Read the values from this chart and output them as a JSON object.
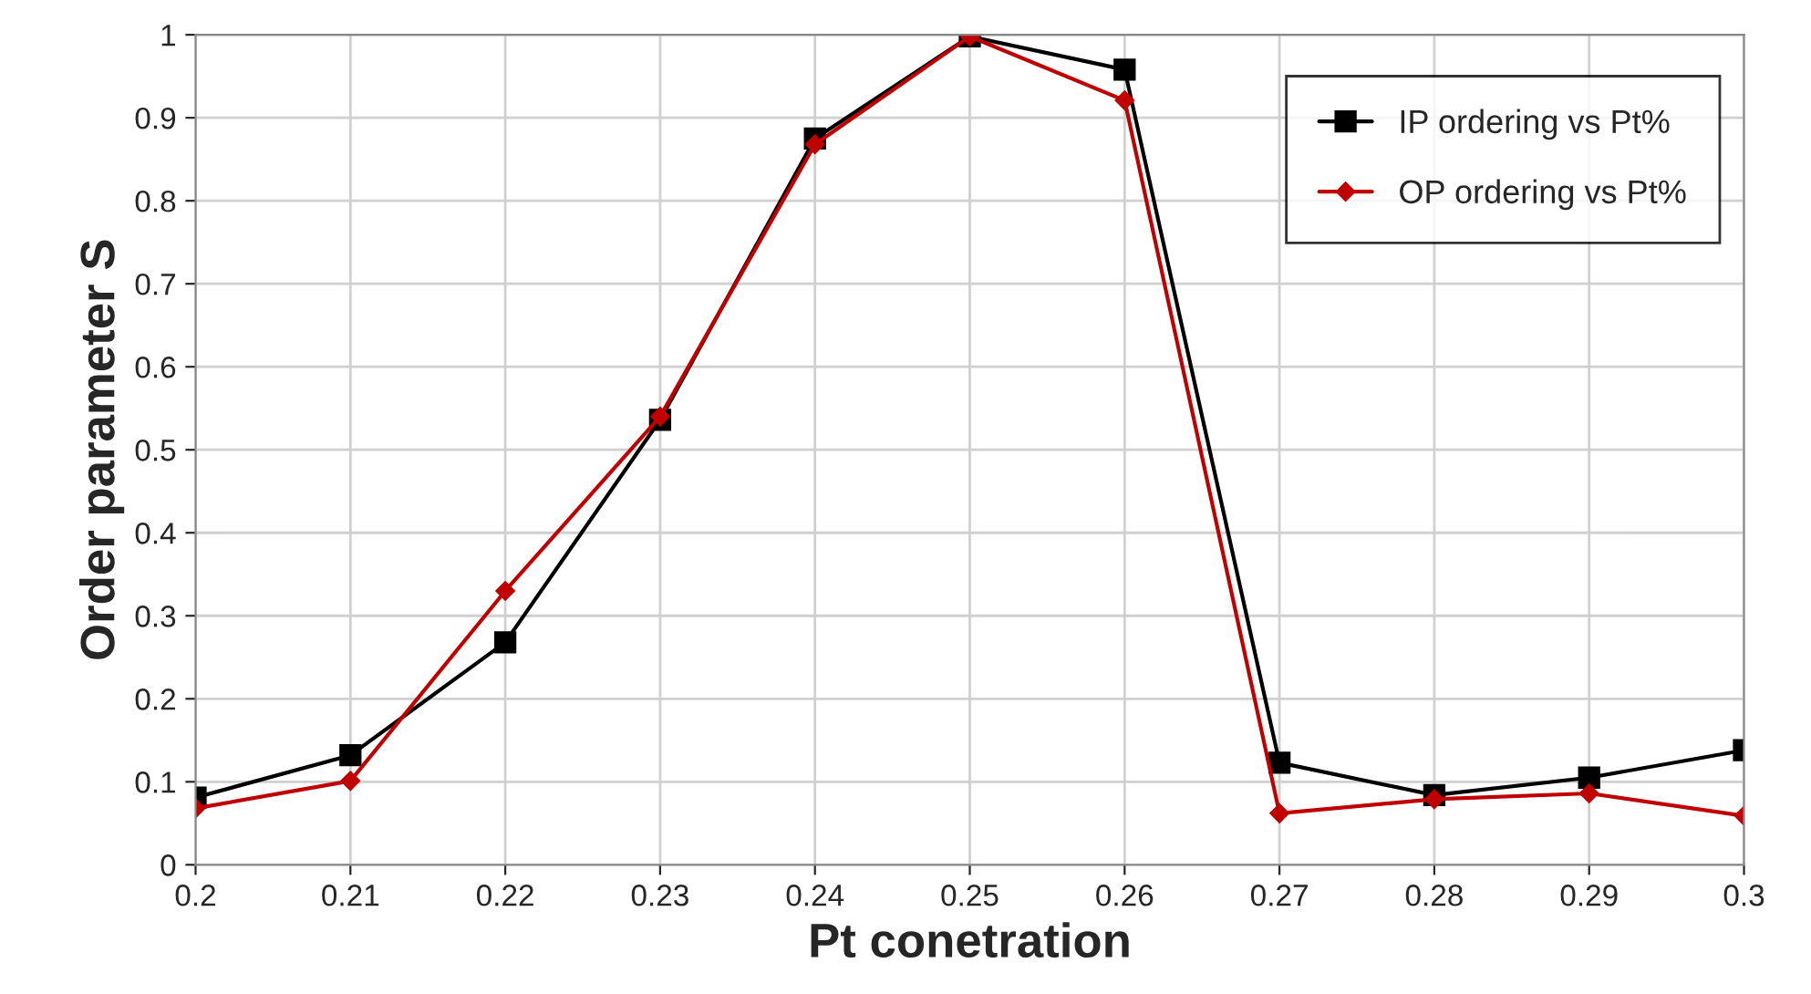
{
  "chart_data": {
    "type": "line",
    "xlabel": "Pt conetration",
    "ylabel": "Order parameter S",
    "x": [
      0.2,
      0.21,
      0.22,
      0.23,
      0.24,
      0.25,
      0.26,
      0.27,
      0.28,
      0.29,
      0.3
    ],
    "series": [
      {
        "name": "IP ordering vs Pt%",
        "color": "#000000",
        "marker": "square",
        "values": [
          0.081,
          0.132,
          0.268,
          0.536,
          0.875,
          0.998,
          0.958,
          0.123,
          0.084,
          0.105,
          0.138
        ]
      },
      {
        "name": "OP ordering vs Pt%",
        "color": "#c00000",
        "marker": "diamond",
        "values": [
          0.068,
          0.101,
          0.33,
          0.54,
          0.868,
          0.998,
          0.921,
          0.062,
          0.079,
          0.086,
          0.059
        ]
      }
    ],
    "xlim": [
      0.2,
      0.3
    ],
    "xticks": [
      0.2,
      0.21,
      0.22,
      0.23,
      0.24,
      0.25,
      0.26,
      0.27,
      0.28,
      0.29,
      0.3
    ],
    "ylim": [
      0,
      1
    ],
    "yticks": [
      0,
      0.1,
      0.2,
      0.3,
      0.4,
      0.5,
      0.6,
      0.7,
      0.8,
      0.9,
      1
    ],
    "grid": true,
    "legend": "top right",
    "line_style": "solid"
  }
}
